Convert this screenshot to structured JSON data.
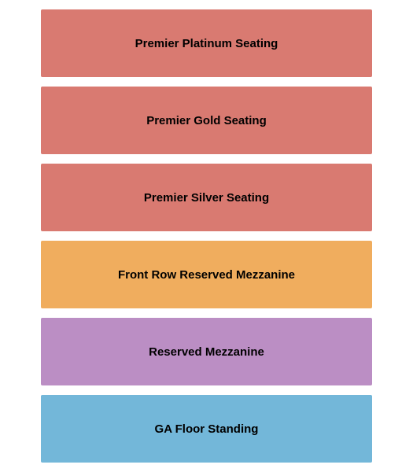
{
  "seating_chart": {
    "type": "infographic",
    "background_color": "#ffffff",
    "section_height": 87,
    "section_gap": 12,
    "font_size": 15,
    "font_weight": "bold",
    "text_color": "#000000",
    "sections": [
      {
        "label": "Premier Platinum Seating",
        "color": "#d97a71"
      },
      {
        "label": "Premier Gold Seating",
        "color": "#d97a71"
      },
      {
        "label": "Premier Silver Seating",
        "color": "#d97a71"
      },
      {
        "label": "Front Row Reserved Mezzanine",
        "color": "#f0ad5e"
      },
      {
        "label": "Reserved Mezzanine",
        "color": "#bb8ec4"
      },
      {
        "label": "GA Floor Standing",
        "color": "#73b7d9"
      }
    ]
  }
}
